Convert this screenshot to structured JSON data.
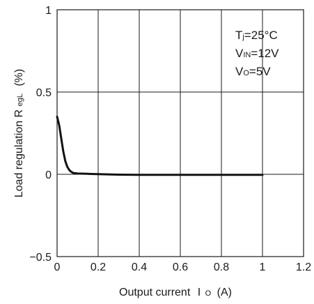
{
  "chart_data": {
    "type": "line",
    "xlabel": "Output current",
    "xlabel_symbol": "I",
    "xlabel_symbol_sub": "O",
    "xlabel_unit": "(A)",
    "ylabel_prefix": "Load regulation  R",
    "ylabel_sub": "egL",
    "ylabel_unit": "(%)",
    "xlim": [
      0,
      1.2
    ],
    "ylim": [
      -0.5,
      1
    ],
    "x_ticks": [
      "0",
      "0.2",
      "0.4",
      "0.6",
      "0.8",
      "1",
      "1.2"
    ],
    "y_ticks": [
      "1",
      "0.5",
      "0",
      "−0.5"
    ],
    "x_tick_values": [
      0,
      0.2,
      0.4,
      0.6,
      0.8,
      1,
      1.2
    ],
    "y_tick_values": [
      1,
      0.5,
      0,
      -0.5
    ],
    "grid": true,
    "annotations": [
      {
        "main": "T",
        "sub": "j",
        "rest": "=25°C"
      },
      {
        "main": "V",
        "sub": "IN",
        "rest": "=12V"
      },
      {
        "main": "V",
        "sub": "O",
        "rest": "=5V"
      }
    ],
    "series": [
      {
        "color": "#111111",
        "x": [
          0,
          0.01,
          0.02,
          0.03,
          0.04,
          0.05,
          0.06,
          0.07,
          0.08,
          0.1,
          0.15,
          0.2,
          0.3,
          0.4,
          0.5,
          0.6,
          0.7,
          0.8,
          0.9,
          1.0
        ],
        "y": [
          0.35,
          0.3,
          0.22,
          0.14,
          0.08,
          0.045,
          0.025,
          0.014,
          0.008,
          0.005,
          0.003,
          0.001,
          -0.002,
          -0.003,
          -0.003,
          -0.003,
          -0.003,
          -0.003,
          -0.003,
          -0.003
        ]
      }
    ]
  }
}
